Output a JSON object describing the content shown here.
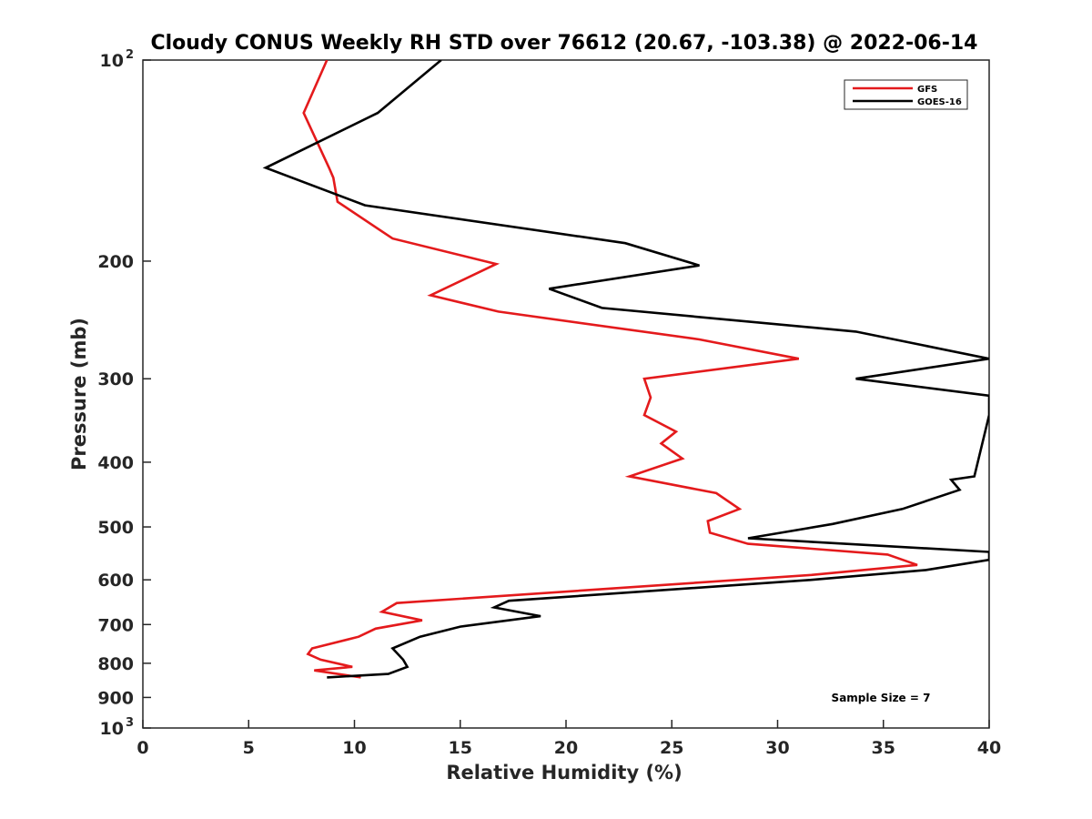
{
  "chart_data": {
    "type": "line",
    "title": "Cloudy CONUS Weekly RH STD over 76612 (20.67, -103.38) @ 2022-06-14",
    "xlabel": "Relative Humidity (%)",
    "ylabel": "Pressure (mb)",
    "xlim": [
      0,
      40
    ],
    "ylim": [
      100,
      1000
    ],
    "yscale": "log",
    "y_reversed": true,
    "grid": false,
    "legend_position": "top-right",
    "x_ticks": [
      0,
      5,
      10,
      15,
      20,
      25,
      30,
      35,
      40
    ],
    "x_tick_labels": [
      "0",
      "5",
      "10",
      "15",
      "20",
      "25",
      "30",
      "35",
      "40"
    ],
    "y_ticks": [
      200,
      300,
      400,
      500,
      600,
      700,
      800,
      900
    ],
    "y_tick_labels": [
      "200",
      "300",
      "400",
      "500",
      "600",
      "700",
      "800",
      "900"
    ],
    "y_top_label": {
      "base": "10",
      "exp": "2"
    },
    "y_bottom_label": {
      "base": "10",
      "exp": "3"
    },
    "annotation": "Sample Size = 7",
    "series": [
      {
        "name": "GFS",
        "color": "#e41a1c",
        "x": [
          8.7,
          7.6,
          8.8,
          9.0,
          9.2,
          11.8,
          16.7,
          13.6,
          16.8,
          26.3,
          31.0,
          23.7,
          24.0,
          23.7,
          25.2,
          24.5,
          25.5,
          23.0,
          27.1,
          28.2,
          26.7,
          26.8,
          28.6,
          35.2,
          36.6,
          31.6,
          12.0,
          11.3,
          13.2,
          11.0,
          10.2,
          8.0,
          7.8,
          8.4,
          9.9,
          8.1,
          10.3
        ],
        "y": [
          100,
          120,
          145,
          150,
          163,
          185,
          202,
          225,
          238,
          262,
          280,
          300,
          320,
          340,
          360,
          375,
          395,
          420,
          445,
          470,
          490,
          510,
          530,
          550,
          570,
          590,
          650,
          670,
          690,
          710,
          730,
          760,
          775,
          790,
          810,
          820,
          840
        ]
      },
      {
        "name": "GOES-16",
        "color": "#000000",
        "x": [
          14.1,
          11.1,
          5.8,
          10.5,
          22.8,
          26.3,
          19.2,
          21.7,
          33.7,
          40.0,
          33.7,
          40.0,
          40.0,
          39.3,
          38.2,
          38.6,
          35.9,
          32.6,
          28.6,
          40.0,
          40.0,
          37.0,
          31.6,
          17.3,
          16.6,
          18.8,
          15.0,
          13.1,
          11.8,
          12.3,
          12.5,
          11.6,
          8.7
        ],
        "y": [
          100,
          120,
          145,
          165,
          188,
          203,
          220,
          235,
          255,
          280,
          300,
          318,
          340,
          420,
          425,
          440,
          470,
          495,
          520,
          545,
          560,
          580,
          600,
          645,
          660,
          680,
          705,
          730,
          760,
          790,
          810,
          830,
          840
        ]
      }
    ]
  }
}
